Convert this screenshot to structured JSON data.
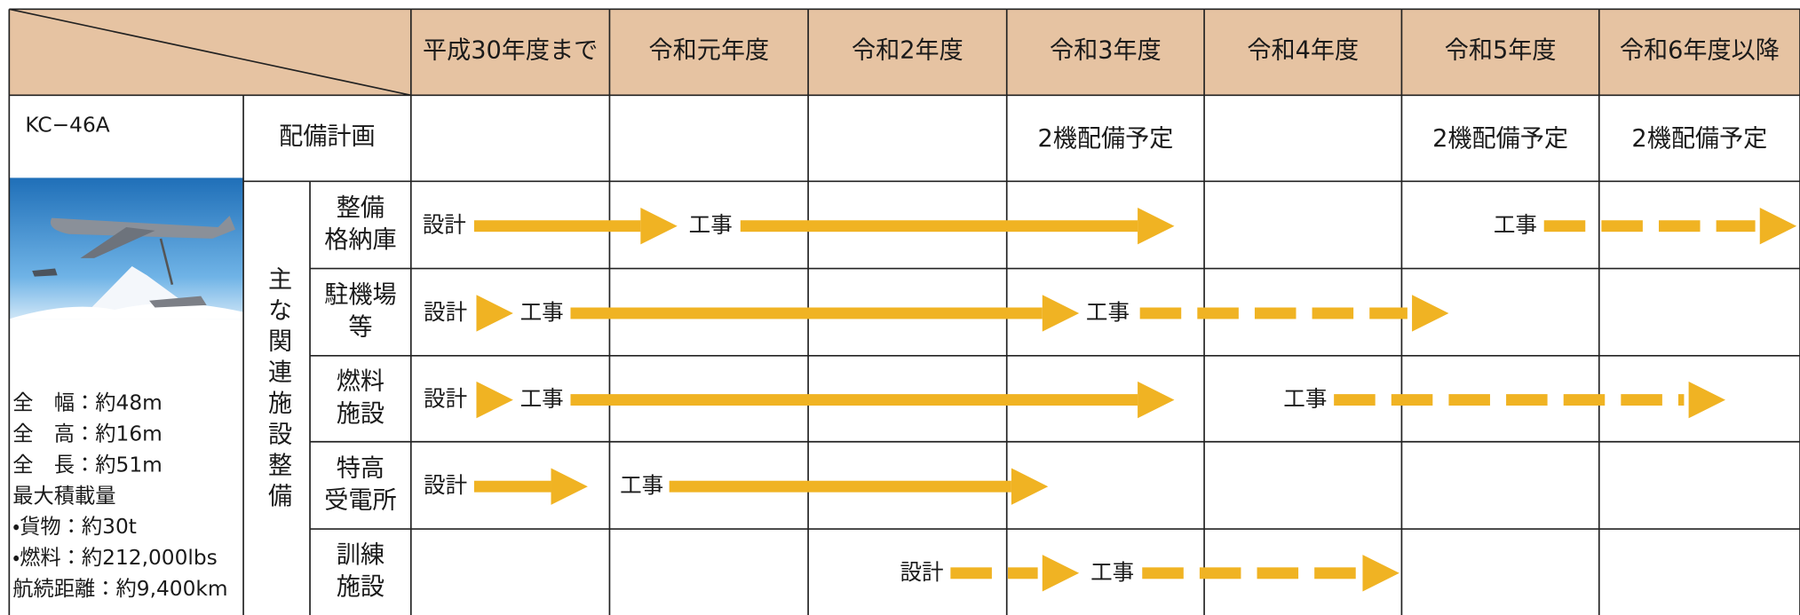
{
  "columns": [
    "平成30年度まで",
    "令和元年度",
    "令和2年度",
    "令和3年度",
    "令和4年度",
    "令和5年度",
    "令和6年度以降"
  ],
  "aircraft": {
    "name": "KC−46A",
    "specs": [
      "全　幅：約48m",
      "全　高：約16m",
      "全　長：約51m",
      "最大積載量",
      "・貨物：約30t",
      "・燃料：約212,000lbs",
      "航続距離：約9,400km"
    ]
  },
  "deployment": {
    "label": "配備計画",
    "entries": [
      "2機配備予定",
      "2機配備予定",
      "2機配備予定"
    ]
  },
  "facilities": {
    "label": "主な関連施設整備",
    "rows": [
      {
        "name": [
          "整備",
          "格納庫"
        ],
        "labels": [
          "設計",
          "工事",
          "工事"
        ]
      },
      {
        "name": [
          "駐機場",
          "等"
        ],
        "labels": [
          "設計",
          "工事",
          "工事"
        ]
      },
      {
        "name": [
          "燃料",
          "施設"
        ],
        "labels": [
          "設計",
          "工事",
          "工事"
        ]
      },
      {
        "name": [
          "特高",
          "受電所"
        ],
        "labels": [
          "設計",
          "工事"
        ]
      },
      {
        "name": [
          "訓練",
          "施設"
        ],
        "labels": [
          "設計",
          "工事"
        ]
      }
    ]
  }
}
